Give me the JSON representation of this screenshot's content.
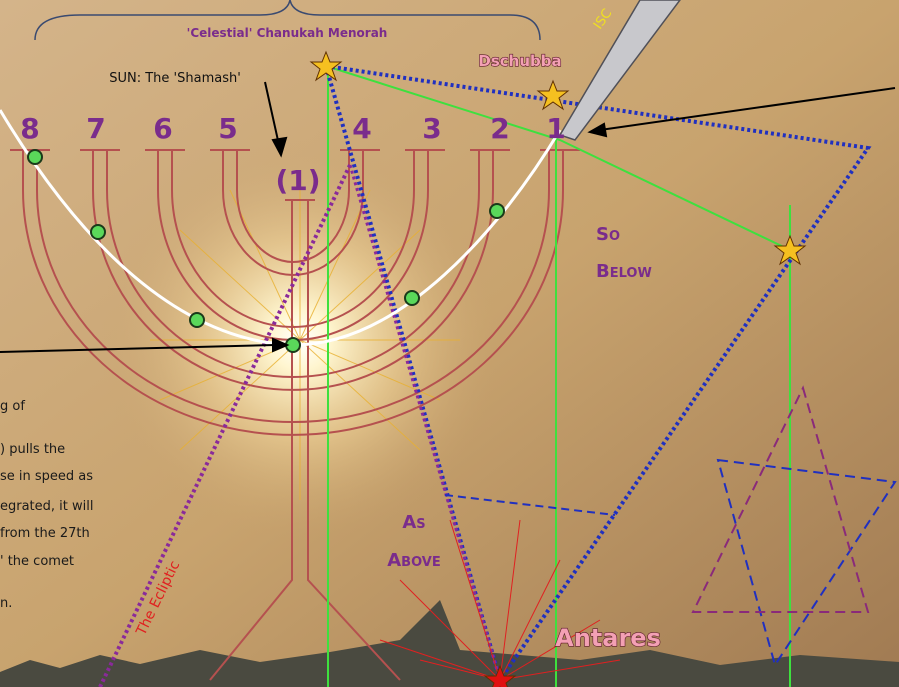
{
  "header": {
    "title": "'Celestial' Chanukah Menorah",
    "sun_label": "SUN: The 'Shamash'"
  },
  "candles": [
    "8",
    "7",
    "6",
    "5",
    "4",
    "3",
    "2",
    "1"
  ],
  "shamash": "(1)",
  "stars": {
    "dschubba": "Dschubba",
    "antares": "Antares"
  },
  "so_below": [
    "So",
    "Below"
  ],
  "as_above": [
    "As",
    "Above"
  ],
  "ecliptic": "The Ecliptic",
  "pen_label": "ISC",
  "paragraph": [
    "g of",
    ") pulls the",
    "se in speed as",
    "egrated, it will",
    "from the 27th",
    "' the comet",
    "n."
  ]
}
